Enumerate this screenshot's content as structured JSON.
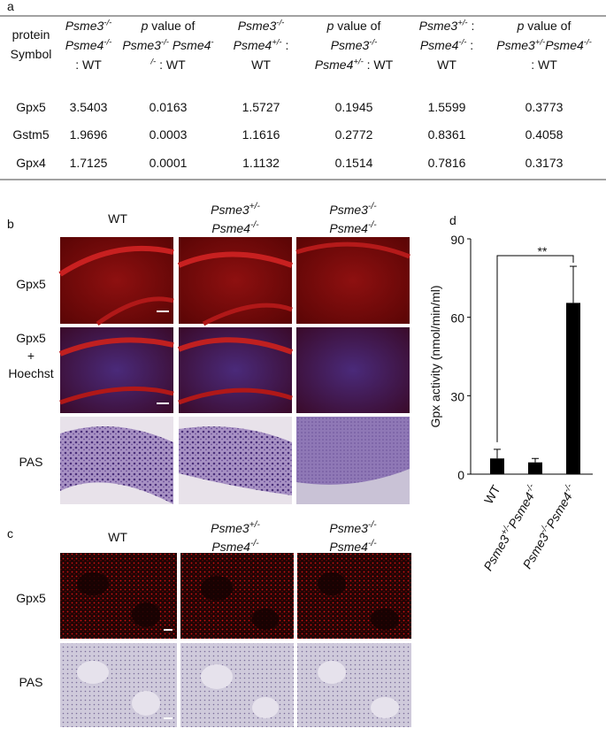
{
  "panel_labels": [
    "a",
    "b",
    "c",
    "d"
  ],
  "table": {
    "header": [
      [
        [
          {
            "t": "protein"
          }
        ],
        [
          {
            "t": "Symbol"
          }
        ]
      ],
      [
        [
          {
            "i": "Psme3"
          },
          {
            "sup": "-/-"
          }
        ],
        [
          {
            "i": "Psme4"
          },
          {
            "sup": "-/-"
          }
        ],
        [
          {
            "t": ": WT"
          }
        ]
      ],
      [
        [
          {
            "i": "p"
          },
          {
            "t": " value of"
          }
        ],
        [
          {
            "i": "Psme3"
          },
          {
            "sup": "-/-"
          },
          {
            "i": " Psme4"
          },
          {
            "sup": "-"
          }
        ],
        [
          {
            "sup": "/-"
          },
          {
            "t": " : WT"
          }
        ]
      ],
      [
        [
          {
            "i": "Psme3"
          },
          {
            "sup": "-/-"
          }
        ],
        [
          {
            "i": "Psme4"
          },
          {
            "sup": "+/-"
          },
          {
            "t": " :"
          }
        ],
        [
          {
            "t": "WT"
          }
        ]
      ],
      [
        [
          {
            "i": "p"
          },
          {
            "t": " value of"
          }
        ],
        [
          {
            "i": "Psme3"
          },
          {
            "sup": "-/-"
          }
        ],
        [
          {
            "i": "Psme4"
          },
          {
            "sup": "+/-"
          },
          {
            "t": " : WT"
          }
        ]
      ],
      [
        [
          {
            "i": "Psme3"
          },
          {
            "sup": "+/-"
          },
          {
            "t": " :"
          }
        ],
        [
          {
            "i": "Psme4"
          },
          {
            "sup": "-/-"
          },
          {
            "t": " :"
          }
        ],
        [
          {
            "t": "WT"
          }
        ]
      ],
      [
        [
          {
            "i": "p"
          },
          {
            "t": " value of"
          }
        ],
        [
          {
            "i": "Psme3"
          },
          {
            "sup": "+/-"
          },
          {
            "i": "Psme4"
          },
          {
            "sup": "-/-"
          }
        ],
        [
          {
            "t": ": WT"
          }
        ]
      ]
    ],
    "rows": [
      [
        "Gpx5",
        "3.5403",
        "0.0163",
        "1.5727",
        "0.1945",
        "1.5599",
        "0.3773"
      ],
      [
        "Gstm5",
        "1.9696",
        "0.0003",
        "1.1616",
        "0.2772",
        "0.8361",
        "0.4058"
      ],
      [
        "Gpx4",
        "1.7125",
        "0.0001",
        "1.1132",
        "0.1514",
        "0.7816",
        "0.3173"
      ]
    ]
  },
  "panel_b": {
    "columns": [
      [
        [
          {
            "t": "WT"
          }
        ]
      ],
      [
        [
          {
            "i": "Psme3"
          },
          {
            "sup": "+/-"
          }
        ],
        [
          {
            "i": "Psme4"
          },
          {
            "sup": "-/-"
          }
        ]
      ],
      [
        [
          {
            "i": "Psme3"
          },
          {
            "sup": "-/-"
          }
        ],
        [
          {
            "i": "Psme4"
          },
          {
            "sup": "-/-"
          }
        ]
      ]
    ],
    "rows": [
      [
        "Gpx5"
      ],
      [
        "Gpx5",
        "+",
        "Hoechst"
      ],
      [
        "PAS"
      ]
    ]
  },
  "panel_c": {
    "columns": [
      [
        [
          {
            "t": "WT"
          }
        ]
      ],
      [
        [
          {
            "i": "Psme3"
          },
          {
            "sup": "+/-"
          }
        ],
        [
          {
            "i": "Psme4"
          },
          {
            "sup": "-/-"
          }
        ]
      ],
      [
        [
          {
            "i": "Psme3"
          },
          {
            "sup": "-/-"
          }
        ],
        [
          {
            "i": "Psme4"
          },
          {
            "sup": "-/-"
          }
        ]
      ]
    ],
    "rows": [
      [
        "Gpx5"
      ],
      [
        "PAS"
      ]
    ]
  },
  "chart_data": {
    "type": "bar",
    "y_label": "Gpx activity (nmol/min/ml)",
    "categories": [
      [
        {
          "t": "WT"
        }
      ],
      [
        {
          "i": "Psme3"
        },
        {
          "sup": "+/-"
        },
        {
          "i": "Psme4"
        },
        {
          "sup": "-/-"
        }
      ],
      [
        {
          "i": "Psme3"
        },
        {
          "sup": "-/-"
        },
        {
          "i": "Psme4"
        },
        {
          "sup": "-/-"
        }
      ]
    ],
    "values": [
      6,
      4.5,
      65.5
    ],
    "errors": [
      3.5,
      1.5,
      14
    ],
    "color": "#000000",
    "ylim": [
      0,
      90
    ],
    "yticks": [
      0,
      30,
      60,
      90
    ],
    "annotation": "**"
  }
}
